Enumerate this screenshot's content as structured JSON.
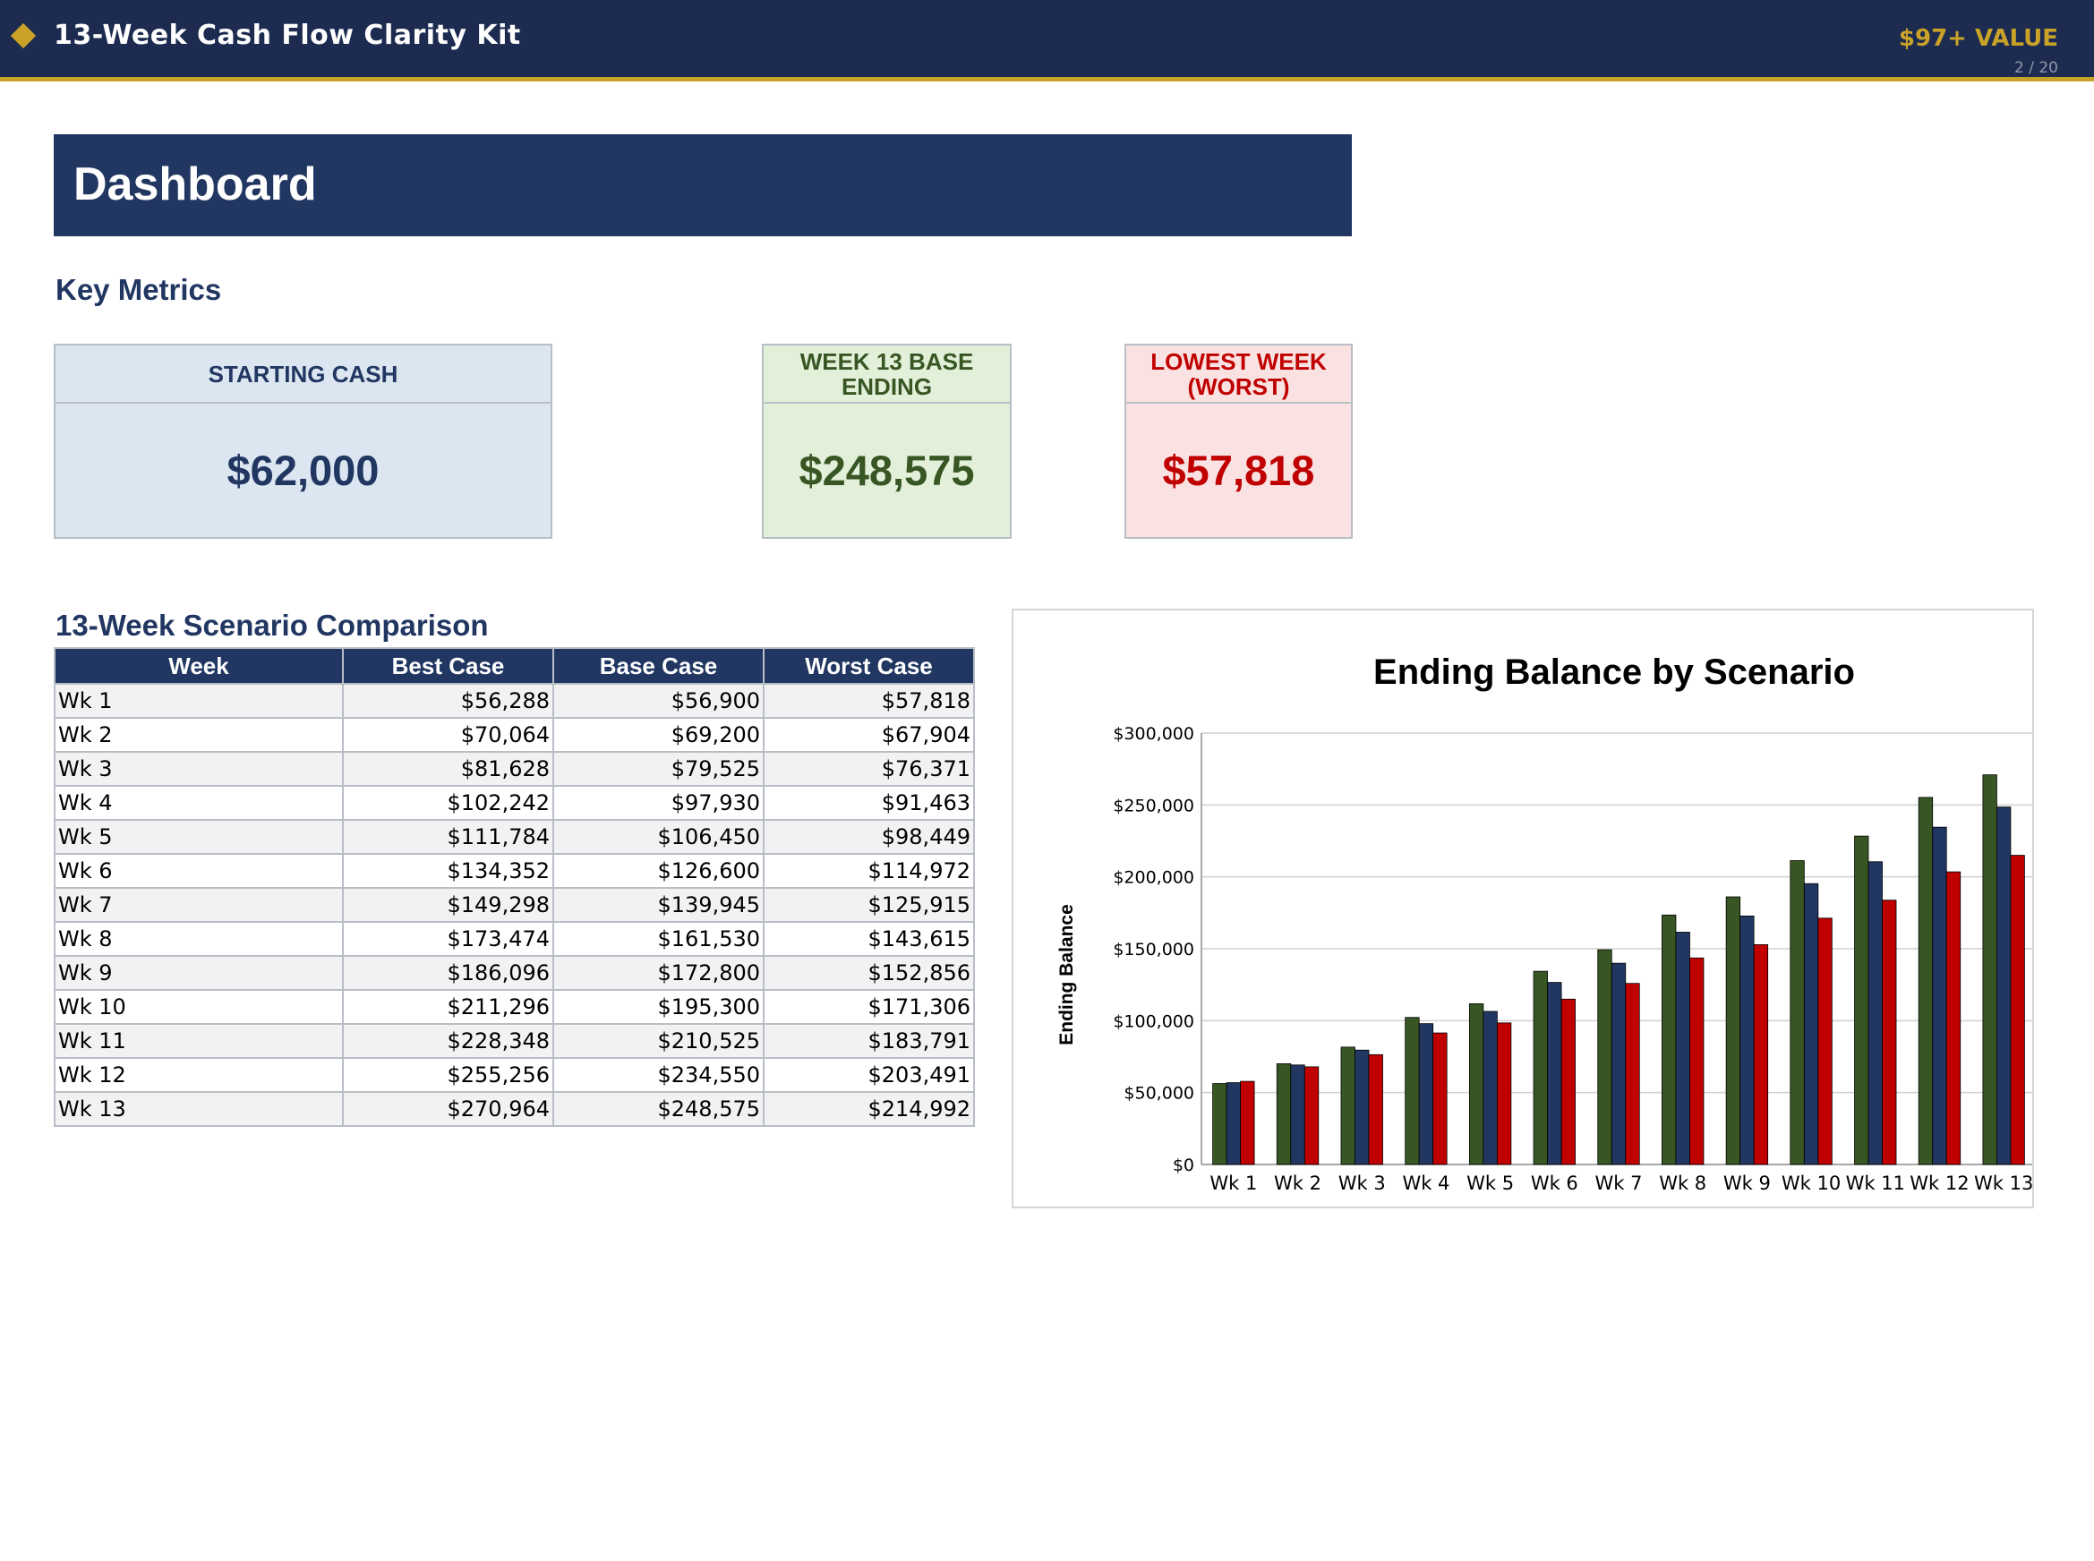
{
  "header": {
    "title": "13-Week Cash Flow Clarity Kit",
    "value_badge": "$97+ VALUE",
    "page_indicator": "2 / 20",
    "accent_color": "#c9a227",
    "bar_color": "#1c2b4f",
    "icon": "diamond-icon"
  },
  "dashboard": {
    "title": "Dashboard",
    "key_metrics_title": "Key Metrics",
    "metrics": [
      {
        "label": "STARTING CASH",
        "value": "$62,000"
      },
      {
        "label": "WEEK 13 BASE ENDING",
        "value": "$248,575"
      },
      {
        "label": "LOWEST WEEK (WORST)",
        "value": "$57,818"
      }
    ]
  },
  "table": {
    "title": "13-Week Scenario Comparison",
    "columns": [
      "Week",
      "Best Case",
      "Base Case",
      "Worst Case"
    ],
    "rows": [
      [
        "Wk 1",
        "$56,288",
        "$56,900",
        "$57,818"
      ],
      [
        "Wk 2",
        "$70,064",
        "$69,200",
        "$67,904"
      ],
      [
        "Wk 3",
        "$81,628",
        "$79,525",
        "$76,371"
      ],
      [
        "Wk 4",
        "$102,242",
        "$97,930",
        "$91,463"
      ],
      [
        "Wk 5",
        "$111,784",
        "$106,450",
        "$98,449"
      ],
      [
        "Wk 6",
        "$134,352",
        "$126,600",
        "$114,972"
      ],
      [
        "Wk 7",
        "$149,298",
        "$139,945",
        "$125,915"
      ],
      [
        "Wk 8",
        "$173,474",
        "$161,530",
        "$143,615"
      ],
      [
        "Wk 9",
        "$186,096",
        "$172,800",
        "$152,856"
      ],
      [
        "Wk 10",
        "$211,296",
        "$195,300",
        "$171,306"
      ],
      [
        "Wk 11",
        "$228,348",
        "$210,525",
        "$183,791"
      ],
      [
        "Wk 12",
        "$255,256",
        "$234,550",
        "$203,491"
      ],
      [
        "Wk 13",
        "$270,964",
        "$248,575",
        "$214,992"
      ]
    ]
  },
  "chart_data": {
    "type": "bar",
    "title": "Ending Balance by Scenario",
    "xlabel": "",
    "ylabel": "Ending Balance",
    "categories": [
      "Wk 1",
      "Wk 2",
      "Wk 3",
      "Wk 4",
      "Wk 5",
      "Wk 6",
      "Wk 7",
      "Wk 8",
      "Wk 9",
      "Wk 10",
      "Wk 11",
      "Wk 12",
      "Wk 13"
    ],
    "series": [
      {
        "color": "#375623",
        "values": [
          56288,
          70064,
          81628,
          102242,
          111784,
          134352,
          149298,
          173474,
          186096,
          211296,
          228348,
          255256,
          270964
        ]
      },
      {
        "color": "#213762",
        "values": [
          56900,
          69200,
          79525,
          97930,
          106450,
          126600,
          139945,
          161530,
          172800,
          195300,
          210525,
          234550,
          248575
        ]
      },
      {
        "color": "#c00000",
        "values": [
          57818,
          67904,
          76371,
          91463,
          98449,
          114972,
          125915,
          143615,
          152856,
          171306,
          183791,
          203491,
          214992
        ]
      }
    ],
    "ylim": [
      0,
      300000
    ],
    "yticks": [
      "$0",
      "$50,000",
      "$100,000",
      "$150,000",
      "$200,000",
      "$250,000",
      "$300,000"
    ],
    "grid": true,
    "legend": "none"
  }
}
